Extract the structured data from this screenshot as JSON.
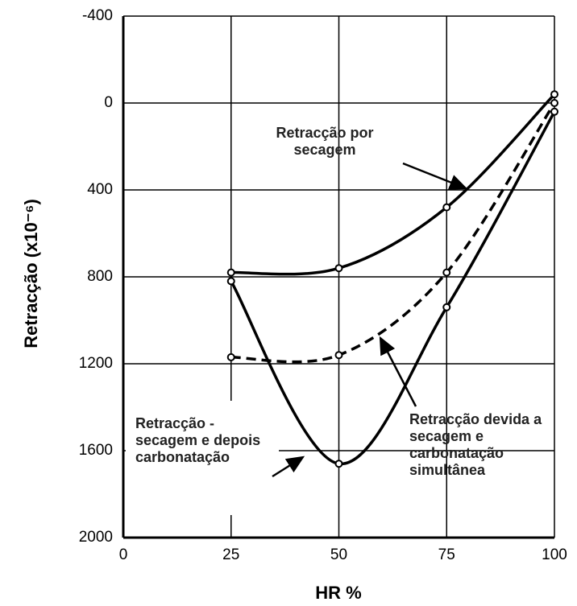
{
  "chart_data": {
    "type": "line",
    "x_label": "HR %",
    "y_label": "Retracção (x10⁻⁶)",
    "xlim": [
      0,
      100
    ],
    "xticks": [
      0,
      25,
      50,
      75,
      100
    ],
    "ylim": [
      2000,
      -400
    ],
    "yticks": [
      -400,
      0,
      400,
      800,
      1200,
      1600,
      2000
    ],
    "grid": true,
    "x": [
      25,
      50,
      75,
      100
    ],
    "series": [
      {
        "name": "Retracção por secagem",
        "color": "#000000",
        "linestyle": "solid",
        "values": [
          780,
          760,
          480,
          -40
        ]
      },
      {
        "name": "Retracção devida a secagem e carbonatação simultânea",
        "color": "#000000",
        "linestyle": "dashed",
        "values": [
          1170,
          1160,
          780,
          0
        ]
      },
      {
        "name": "Retracção - secagem e depois carbonatação",
        "color": "#000000",
        "linestyle": "solid",
        "values": [
          820,
          1660,
          940,
          40
        ]
      }
    ]
  }
}
